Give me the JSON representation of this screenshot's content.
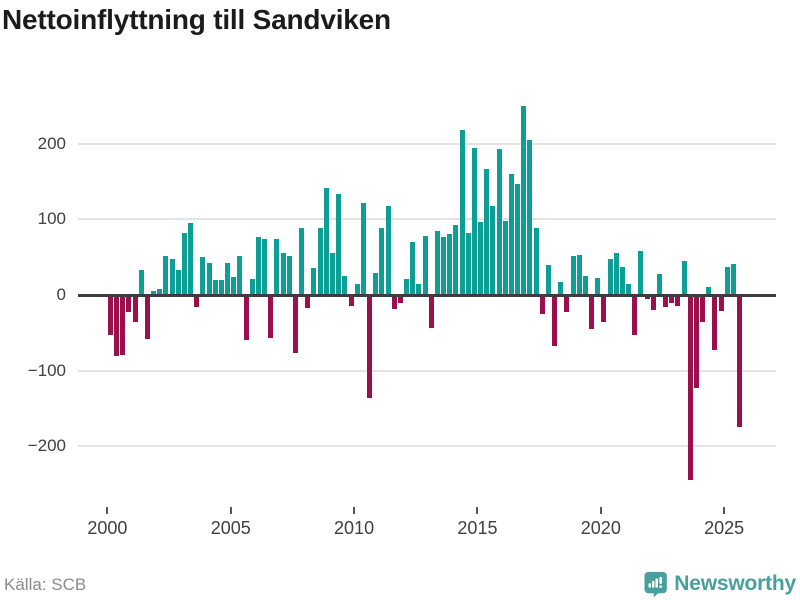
{
  "title": "Nettoinflyttning till Sandviken",
  "footer": {
    "source": "Källa: SCB",
    "brand": "Newsworthy"
  },
  "colors": {
    "positive": "#0d9e96",
    "negative": "#9b0f4c",
    "gridline": "#e3e3e3",
    "zero_line": "#3d3d3d",
    "axis_text": "#404040",
    "title_text": "#1b1b1b",
    "source_text": "#8b8b8b",
    "brand_teal": "#47a09d"
  },
  "axes": {
    "y_tick_values": [
      200,
      100,
      0,
      -100,
      -200
    ],
    "y_tick_labels": [
      "200",
      "100",
      "0",
      "−100",
      "−200"
    ],
    "x_tick_values": [
      2000,
      2005,
      2010,
      2015,
      2020,
      2025
    ],
    "x_tick_labels": [
      "2000",
      "2005",
      "2010",
      "2015",
      "2020",
      "2025"
    ]
  },
  "chart_data": {
    "type": "bar",
    "title": "Nettoinflyttning till Sandviken",
    "xlabel": "",
    "ylabel": "",
    "frequency": "quarterly",
    "start": {
      "year": 2000,
      "quarter": 1
    },
    "end": {
      "year": 2025,
      "quarter": 3
    },
    "grid": "horizontal",
    "legend": "none",
    "ylim": [
      -277,
      264
    ],
    "x_domain_years": [
      1998.81,
      2027.1
    ],
    "yticks": [
      -200,
      -100,
      0,
      100,
      200
    ],
    "xticks": [
      2000,
      2005,
      2010,
      2015,
      2020,
      2025
    ],
    "positive_color": "#0d9e96",
    "negative_color": "#9b0f4c",
    "values": [
      -53,
      -81,
      -79,
      -23,
      -36,
      33,
      -58,
      5,
      8,
      51,
      47,
      33,
      82,
      95,
      -16,
      50,
      42,
      20,
      20,
      42,
      24,
      52,
      -60,
      21,
      77,
      74,
      -57,
      74,
      55,
      52,
      -76,
      89,
      -17,
      36,
      89,
      141,
      55,
      133,
      25,
      -14,
      15,
      122,
      -136,
      29,
      89,
      117,
      -18,
      -11,
      21,
      70,
      15,
      78,
      -43,
      85,
      77,
      80,
      92,
      218,
      82,
      194,
      96,
      167,
      118,
      193,
      98,
      160,
      146,
      250,
      205,
      88,
      -25,
      39,
      -68,
      17,
      -23,
      51,
      53,
      25,
      -45,
      22,
      -36,
      48,
      56,
      37,
      14,
      -53,
      58,
      -5,
      -20,
      28,
      -16,
      -11,
      -15,
      45,
      -245,
      -123,
      -36,
      11,
      -72,
      -21,
      37,
      41,
      -175
    ]
  }
}
